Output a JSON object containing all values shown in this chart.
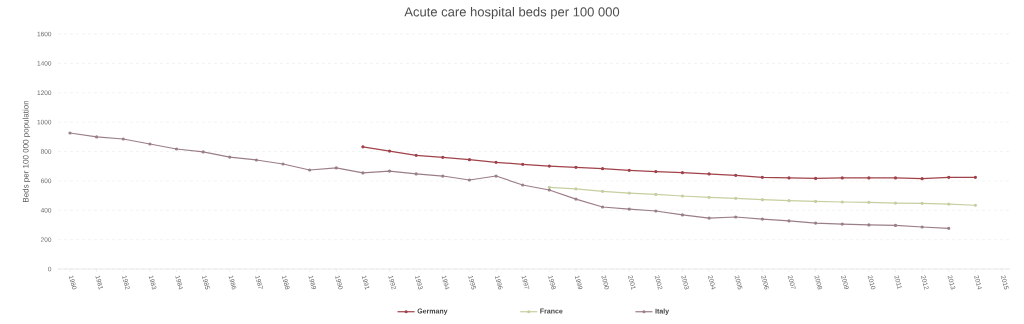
{
  "chart_data": {
    "type": "line",
    "title": "Acute care hospital beds per 100 000",
    "ylabel": "Beds per 100 000 population",
    "categories": [
      "1980",
      "1981",
      "1982",
      "1983",
      "1984",
      "1985",
      "1986",
      "1987",
      "1988",
      "1989",
      "1990",
      "1991",
      "1992",
      "1993",
      "1994",
      "1995",
      "1996",
      "1997",
      "1998",
      "1999",
      "2000",
      "2001",
      "2002",
      "2003",
      "2004",
      "2005",
      "2006",
      "2007",
      "2008",
      "2009",
      "2010",
      "2011",
      "2012",
      "2013",
      "2014",
      "2015"
    ],
    "series": [
      {
        "name": "Germany",
        "color": "#a0424a",
        "values": [
          null,
          null,
          null,
          null,
          null,
          null,
          null,
          null,
          null,
          null,
          null,
          832,
          803,
          774,
          760,
          744,
          726,
          713,
          701,
          692,
          683,
          672,
          663,
          656,
          647,
          638,
          624,
          620,
          617,
          620,
          620,
          620,
          615,
          624,
          624,
          null
        ]
      },
      {
        "name": "France",
        "color": "#c5cfa0",
        "values": [
          null,
          null,
          null,
          null,
          null,
          null,
          null,
          null,
          null,
          null,
          null,
          null,
          null,
          null,
          null,
          null,
          null,
          null,
          556,
          545,
          529,
          517,
          508,
          497,
          488,
          481,
          472,
          465,
          460,
          456,
          454,
          449,
          447,
          442,
          434,
          null
        ]
      },
      {
        "name": "Italy",
        "color": "#9b7e8a",
        "values": [
          926,
          899,
          885,
          851,
          817,
          797,
          762,
          742,
          715,
          674,
          688,
          654,
          667,
          647,
          633,
          606,
          633,
          572,
          538,
          476,
          422,
          408,
          395,
          368,
          347,
          354,
          340,
          327,
          313,
          306,
          300,
          297,
          286,
          277,
          null,
          null
        ]
      }
    ],
    "ylim": [
      0,
      1600
    ],
    "yticks": [
      0,
      200,
      400,
      600,
      800,
      1000,
      1200,
      1400,
      1600
    ],
    "grid": "y",
    "legend": "bottom",
    "marker": "circle",
    "line_style": "solid"
  }
}
